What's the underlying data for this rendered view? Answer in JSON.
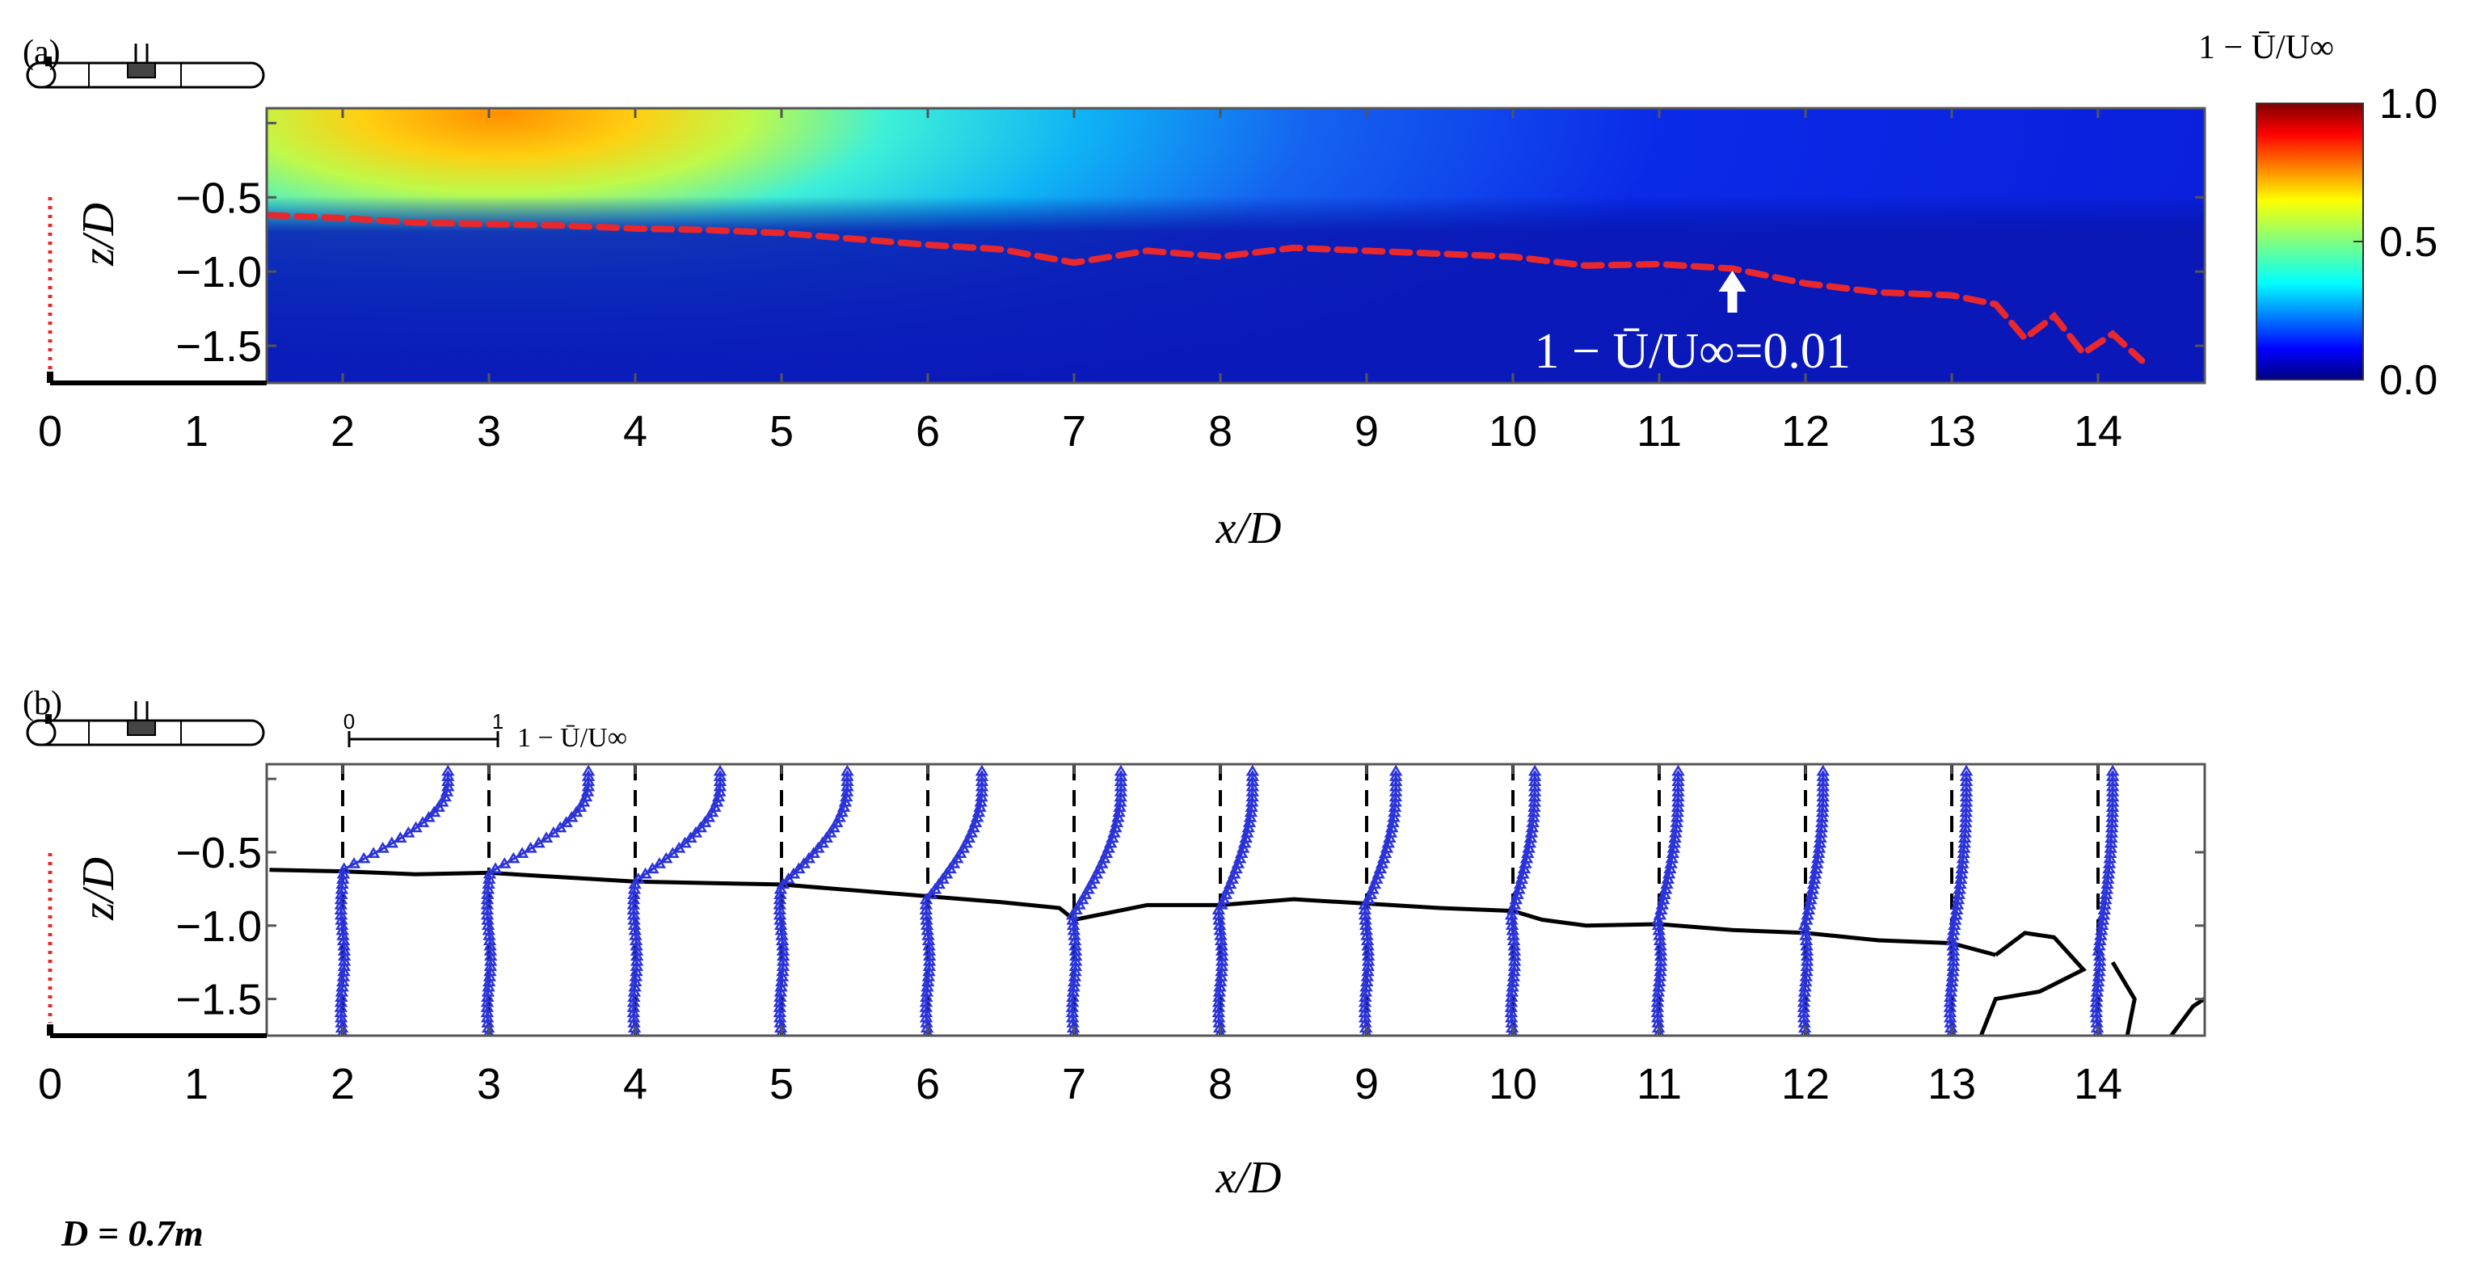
{
  "chart_data": [
    {
      "panel_label": "(a)",
      "type": "heatmap",
      "xlabel": "x/D",
      "ylabel": "z/D",
      "xlim": [
        0,
        14.8
      ],
      "ylim": [
        -1.75,
        0.1
      ],
      "xticks": [
        "0",
        "1",
        "2",
        "3",
        "4",
        "5",
        "6",
        "7",
        "8",
        "9",
        "10",
        "11",
        "12",
        "13",
        "14"
      ],
      "yticks": [
        "-0.5",
        "-1.0",
        "-1.5"
      ],
      "data_x_range": [
        1.5,
        14.8
      ],
      "colorbar": {
        "title": "1 − Ū/U∞",
        "ticks": [
          "1.0",
          "0.5",
          "0.0"
        ],
        "range": [
          0,
          1
        ],
        "colormap": "jet"
      },
      "field_peak": {
        "x": 2.4,
        "z": 0.0,
        "value": 0.75
      },
      "contour_level": 0.01,
      "contour_color": "#e8282c",
      "contour": {
        "x": [
          1.5,
          2,
          2.5,
          3,
          3.5,
          4,
          4.5,
          5,
          5.5,
          6,
          6.5,
          7,
          7.5,
          8,
          8.5,
          9,
          9.5,
          10,
          10.5,
          11,
          11.5,
          12,
          12.5,
          13,
          13.3,
          13.5,
          13.7,
          13.9,
          14.1,
          14.3
        ],
        "z": [
          -0.62,
          -0.64,
          -0.67,
          -0.68,
          -0.69,
          -0.71,
          -0.72,
          -0.74,
          -0.78,
          -0.82,
          -0.85,
          -0.94,
          -0.86,
          -0.9,
          -0.84,
          -0.86,
          -0.88,
          -0.9,
          -0.96,
          -0.95,
          -0.98,
          -1.08,
          -1.14,
          -1.16,
          -1.22,
          -1.45,
          -1.3,
          -1.55,
          -1.42,
          -1.6
        ]
      },
      "annotation": {
        "text": "1 − Ū/U∞=0.01",
        "x": 11.5,
        "z": -0.95
      }
    },
    {
      "panel_label": "(b)",
      "type": "line",
      "xlabel": "x/D",
      "ylabel": "z/D",
      "xlim": [
        0,
        14.8
      ],
      "ylim": [
        -1.75,
        0.1
      ],
      "xticks": [
        "0",
        "1",
        "2",
        "3",
        "4",
        "5",
        "6",
        "7",
        "8",
        "9",
        "10",
        "11",
        "12",
        "13",
        "14"
      ],
      "yticks": [
        "-0.5",
        "-1.0",
        "-1.5"
      ],
      "profile_scale": {
        "start": "0",
        "end": "1",
        "label": "1 − Ū/U∞"
      },
      "profile_color": "#2b33d8",
      "profile_stations": [
        2,
        3,
        4,
        5,
        6,
        7,
        8,
        9,
        10,
        11,
        12,
        13,
        14
      ],
      "profile_peak_deficit": [
        0.72,
        0.68,
        0.58,
        0.45,
        0.37,
        0.32,
        0.22,
        0.2,
        0.15,
        0.13,
        0.12,
        0.1,
        0.1
      ],
      "boundary_depth": [
        -0.62,
        -0.64,
        -0.7,
        -0.73,
        -0.82,
        -0.92,
        -0.88,
        -0.86,
        -0.9,
        -0.95,
        -1.0,
        -1.12,
        -1.2
      ],
      "boundary": {
        "x": [
          1.5,
          2,
          2.5,
          3,
          3.5,
          4,
          4.5,
          5,
          5.5,
          6,
          6.5,
          6.9,
          7.0,
          7.5,
          8,
          8.5,
          9,
          9.5,
          10,
          10.2,
          10.5,
          11,
          11.5,
          12,
          12.5,
          13,
          13.3
        ],
        "z": [
          -0.62,
          -0.63,
          -0.65,
          -0.64,
          -0.67,
          -0.7,
          -0.71,
          -0.72,
          -0.76,
          -0.8,
          -0.84,
          -0.88,
          -0.96,
          -0.86,
          -0.86,
          -0.82,
          -0.85,
          -0.88,
          -0.9,
          -0.96,
          -1.0,
          -0.99,
          -1.03,
          -1.05,
          -1.1,
          -1.12,
          -1.2
        ]
      }
    }
  ],
  "footnote": "D = 0.7m",
  "colors": {
    "contour": "#e8282c",
    "profiles": "#2b33d8",
    "axes": "#555555",
    "boundary": "#000000"
  },
  "icons": [
    "turbine-sketch-icon"
  ]
}
